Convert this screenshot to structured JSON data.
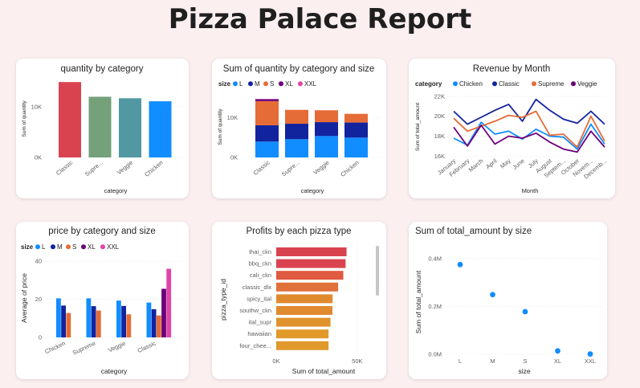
{
  "page": {
    "title": "Pizza Palace Report"
  },
  "chart_data": [
    {
      "id": "c1",
      "type": "bar",
      "title": "quantity by category",
      "xlabel": "category",
      "ylabel": "Sum of quantity",
      "categories": [
        "Classic",
        "Supreme",
        "Veggie",
        "Chicken"
      ],
      "category_labels": [
        "Classic",
        "Supre...",
        "Veggie",
        "Chicken"
      ],
      "values": [
        14900,
        12000,
        11700,
        11100
      ],
      "colors": [
        "#d9434f",
        "#74a07a",
        "#5198a2",
        "#118dff"
      ],
      "ylim": [
        0,
        15400
      ],
      "yticks": [
        0,
        10000
      ],
      "ytick_labels": [
        "0K",
        "10K"
      ]
    },
    {
      "id": "c2",
      "type": "bar",
      "stacked": true,
      "title": "Sum of quantity by category and size",
      "xlabel": "category",
      "ylabel": "Sum of quantity",
      "legend_title": "size",
      "categories": [
        "Classic",
        "Supreme",
        "Veggie",
        "Chicken"
      ],
      "category_labels": [
        "Classic",
        "Supre...",
        "Veggie",
        "Chicken"
      ],
      "series": [
        {
          "name": "L",
          "color": "#118dff",
          "values": [
            4000,
            4600,
            5400,
            5000
          ]
        },
        {
          "name": "M",
          "color": "#12239e",
          "values": [
            4100,
            3900,
            3500,
            3800
          ]
        },
        {
          "name": "S",
          "color": "#e66c37",
          "values": [
            6100,
            3500,
            3000,
            2200
          ]
        },
        {
          "name": "XL",
          "color": "#6b007b",
          "values": [
            500,
            0,
            0,
            0
          ]
        },
        {
          "name": "XXL",
          "color": "#e044a7",
          "values": [
            30,
            0,
            0,
            0
          ]
        }
      ],
      "ylim": [
        0,
        15800
      ],
      "yticks": [
        0,
        10000
      ],
      "ytick_labels": [
        "0K",
        "10K"
      ]
    },
    {
      "id": "c3",
      "type": "line",
      "title": "Revenue by Month",
      "xlabel": "Month",
      "ylabel": "Sum of total_amount",
      "legend_title": "category",
      "x": [
        "January",
        "February",
        "March",
        "April",
        "May",
        "June",
        "July",
        "August",
        "September",
        "October",
        "November",
        "December"
      ],
      "x_labels": [
        "January",
        "February",
        "March",
        "April",
        "May",
        "June",
        "July",
        "August",
        "Septem...",
        "October",
        "Novem...",
        "Decemb..."
      ],
      "series": [
        {
          "name": "Chicken",
          "color": "#118dff",
          "values": [
            17800,
            17100,
            19400,
            18200,
            18500,
            17700,
            18700,
            18000,
            17900,
            16700,
            19200,
            17200
          ]
        },
        {
          "name": "Classic",
          "color": "#12239e",
          "values": [
            20500,
            19200,
            19900,
            20600,
            21200,
            19500,
            21700,
            20600,
            19700,
            19300,
            20500,
            19200
          ]
        },
        {
          "name": "Supreme",
          "color": "#e66c37",
          "values": [
            19800,
            18500,
            19000,
            19500,
            20100,
            19900,
            20500,
            18100,
            18200,
            16900,
            20000,
            17500
          ]
        },
        {
          "name": "Veggie",
          "color": "#6b007b",
          "values": [
            18900,
            17000,
            19100,
            17200,
            18000,
            17800,
            18300,
            17400,
            16700,
            16400,
            18500,
            16900
          ]
        }
      ],
      "ylim": [
        15700,
        22400
      ],
      "yticks": [
        16000,
        18000,
        20000,
        22000
      ],
      "ytick_labels": [
        "16K",
        "18K",
        "20K",
        "22K"
      ]
    },
    {
      "id": "c4",
      "type": "bar",
      "title": "price by category and size",
      "xlabel": "category",
      "ylabel": "Average of price",
      "legend_title": "size",
      "categories": [
        "Chicken",
        "Supreme",
        "Veggie",
        "Classic"
      ],
      "category_labels": [
        "Chicken",
        "Supreme",
        "Veggie",
        "Classic"
      ],
      "series": [
        {
          "name": "L",
          "color": "#118dff",
          "values": [
            20.5,
            20.5,
            19.3,
            18.3
          ]
        },
        {
          "name": "M",
          "color": "#12239e",
          "values": [
            16.7,
            16.4,
            16.5,
            14.8
          ]
        },
        {
          "name": "S",
          "color": "#e66c37",
          "values": [
            12.8,
            14.1,
            12.1,
            11.5
          ]
        },
        {
          "name": "XL",
          "color": "#6b007b",
          "values": [
            null,
            null,
            null,
            25.5
          ]
        },
        {
          "name": "XXL",
          "color": "#e044a7",
          "values": [
            null,
            null,
            null,
            36
          ]
        }
      ],
      "ylim": [
        0,
        43
      ],
      "yticks": [
        0,
        20,
        40
      ],
      "ytick_labels": [
        "0",
        "20",
        "40"
      ]
    },
    {
      "id": "c5",
      "type": "bar",
      "orientation": "horizontal",
      "title": "Profits by each pizza type",
      "xlabel": "Sum of total_amount",
      "ylabel": "pizza_type_id",
      "categories": [
        "thai_ckn",
        "bbq_ckn",
        "cali_ckn",
        "classic_dlx",
        "spicy_ital",
        "southw_ckn",
        "ital_supr",
        "hawaiian",
        "four_chee..."
      ],
      "values": [
        43400,
        42800,
        41400,
        38200,
        34800,
        34700,
        33500,
        32300,
        32300
      ],
      "colors": [
        "#d9434f",
        "#d9434f",
        "#df5a41",
        "#e0713b",
        "#e08a30",
        "#e08a30",
        "#e0922c",
        "#e0992a",
        "#e0992a"
      ],
      "xlim": [
        0,
        58000
      ],
      "xticks": [
        0,
        50000
      ],
      "xtick_labels": [
        "0K",
        "50K"
      ]
    },
    {
      "id": "c6",
      "type": "scatter",
      "title": "Sum of total_amount by size",
      "xlabel": "size",
      "ylabel": "Sum of total_amount",
      "x": [
        "L",
        "M",
        "S",
        "XL",
        "XXL"
      ],
      "values": [
        375318,
        249382,
        178076,
        14076,
        1007
      ],
      "color": "#118dff",
      "ylim": [
        0,
        420000
      ],
      "yticks": [
        0,
        200000,
        400000
      ],
      "ytick_labels": [
        "0.0M",
        "0.2M",
        "0.4M"
      ]
    }
  ]
}
